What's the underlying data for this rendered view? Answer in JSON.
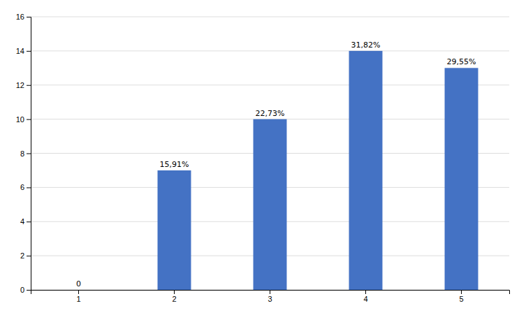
{
  "chart_data": {
    "type": "bar",
    "categories": [
      "1",
      "2",
      "3",
      "4",
      "5"
    ],
    "values": [
      0,
      7,
      10,
      14,
      13
    ],
    "value_labels": [
      "0",
      "15,91%",
      "22,73%",
      "31,82%",
      "29,55%"
    ],
    "data_labels": true,
    "color": "#4472C4",
    "ylim": [
      0,
      16
    ],
    "yticks": [
      0,
      2,
      4,
      6,
      8,
      10,
      12,
      14,
      16
    ],
    "grid": true
  }
}
